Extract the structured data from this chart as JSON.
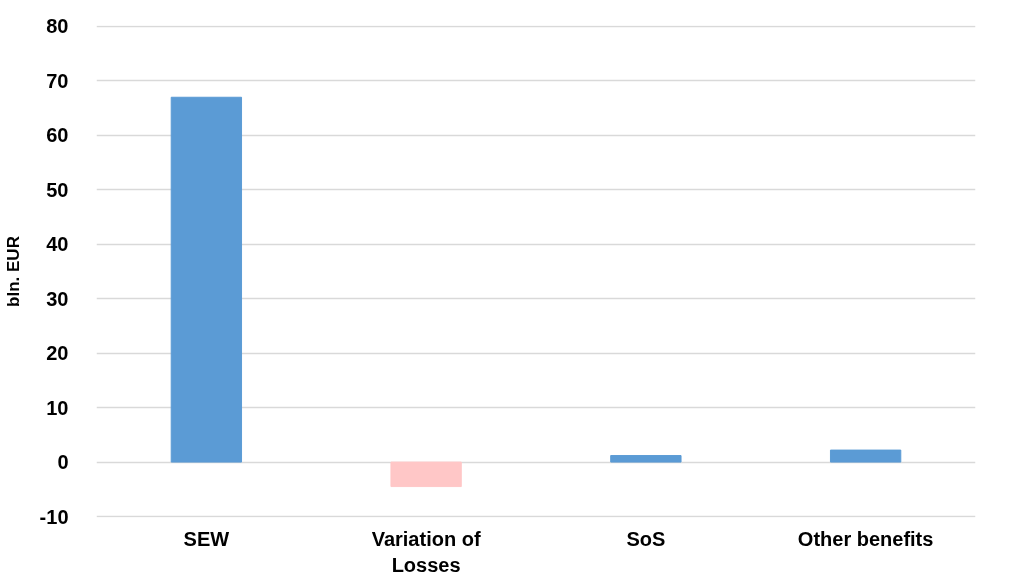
{
  "chart_data": {
    "type": "bar",
    "ylabel": "bln. EUR",
    "categories": [
      "SEW",
      "Variation of Losses",
      "SoS",
      "Other benefits"
    ],
    "values": [
      67.0,
      -4.5,
      1.2,
      2.2
    ],
    "colors": [
      "#5b9bd5",
      "#ffc7c7",
      "#5b9bd5",
      "#5b9bd5"
    ],
    "ylim": [
      -10,
      80
    ],
    "yticks": [
      -10,
      0,
      10,
      20,
      30,
      40,
      50,
      60,
      70,
      80
    ],
    "grid": "y"
  }
}
